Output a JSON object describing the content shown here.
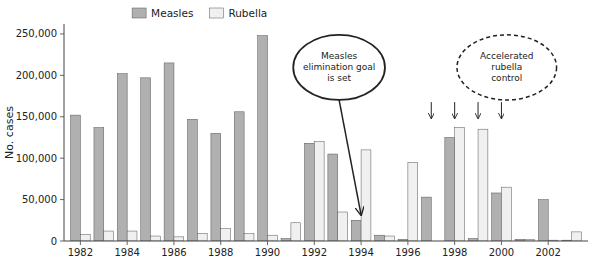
{
  "chart_data": {
    "type": "bar",
    "categories": [
      "1982",
      null,
      "1984",
      null,
      "1986",
      null,
      "1988",
      null,
      "1990",
      null,
      "1992",
      null,
      "1994",
      null,
      "1996",
      null,
      "1998",
      null,
      "2000",
      null,
      "2002",
      null
    ],
    "series": [
      {
        "name": "Measles",
        "color": "#b0b0b0",
        "values": [
          152000,
          137000,
          202000,
          197000,
          215000,
          147000,
          130000,
          156000,
          248000,
          3000,
          118000,
          105000,
          25000,
          7000,
          2000,
          53000,
          125000,
          3000,
          58000,
          2000,
          50000,
          1000
        ]
      },
      {
        "name": "Rubella",
        "color": "#f0f0f0",
        "values": [
          8000,
          12000,
          12000,
          6000,
          5000,
          9000,
          15000,
          9000,
          7000,
          22000,
          120000,
          35000,
          110000,
          6000,
          95000,
          0,
          137000,
          135000,
          65000,
          2000,
          1000,
          11000
        ]
      }
    ],
    "y_label": "No. cases",
    "ylim": [
      0,
      262000
    ],
    "yticks": [
      0,
      {
        "value": 50000,
        "label": "50,000"
      },
      {
        "value": 100000,
        "label": "100,000"
      },
      {
        "value": 150000,
        "label": "150,000"
      },
      {
        "value": 200000,
        "label": "200,000"
      },
      {
        "value": 250000,
        "label": "250,000"
      }
    ],
    "annotations": [
      "Measles\nelimination goal\nis set",
      "Accelerated\nrubella\ncontrol"
    ],
    "grid": false,
    "legend": "top-left"
  }
}
